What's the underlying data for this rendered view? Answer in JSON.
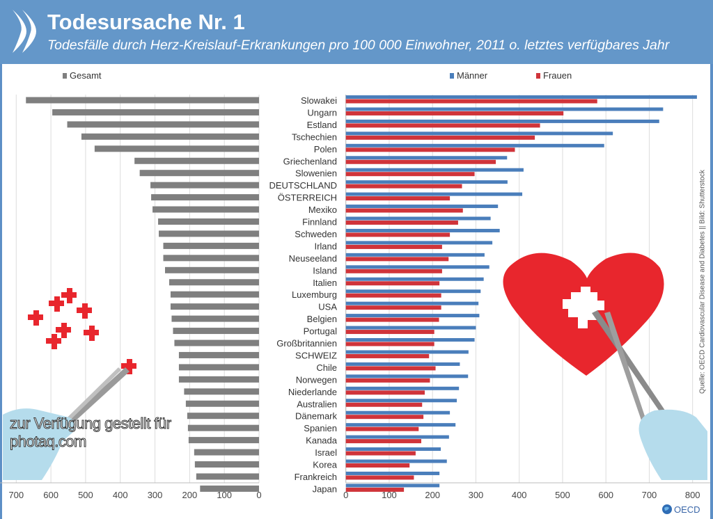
{
  "header": {
    "title": "Todesursache Nr. 1",
    "subtitle": "Todesfälle durch Herz-Kreislauf-Erkrankungen pro 100 000 Einwohner, 2011 o. letztes verfügbares Jahr"
  },
  "source": "Quelle: OECD Cardiovascular Disease and Diabetes || Bild: Shutterstock",
  "watermark": "zur Verfügung gestellt für photaq.com",
  "logo_text": "OECD",
  "colors": {
    "header": "#6497c9",
    "gesamt": "#7f7f7f",
    "maenner": "#4a7ebb",
    "frauen": "#d0343a"
  },
  "chart_data": [
    {
      "type": "bar",
      "orientation": "horizontal-reversed",
      "legend": [
        "Gesamt"
      ],
      "xlim": [
        0,
        700
      ],
      "xticks": [
        "700",
        "600",
        "500",
        "400",
        "300",
        "200",
        "100",
        "0"
      ],
      "categories": [
        "Slowakei",
        "Ungarn",
        "Estland",
        "Tschechien",
        "Polen",
        "Griechenland",
        "Slowenien",
        "DEUTSCHLAND",
        "ÖSTERREICH",
        "Mexiko",
        "Finnland",
        "Schweden",
        "Irland",
        "Neuseeland",
        "Island",
        "Italien",
        "Luxemburg",
        "USA",
        "Belgien",
        "Portugal",
        "Großbritannien",
        "SCHWEIZ",
        "Chile",
        "Norwegen",
        "Niederlande",
        "Australien",
        "Dänemark",
        "Spanien",
        "Kanada",
        "Israel",
        "Korea",
        "Frankreich",
        "Japan"
      ],
      "series": [
        {
          "name": "Gesamt",
          "values": [
            672,
            596,
            553,
            512,
            474,
            359,
            344,
            313,
            311,
            307,
            291,
            289,
            276,
            276,
            271,
            259,
            255,
            255,
            252,
            248,
            244,
            231,
            231,
            231,
            216,
            211,
            207,
            205,
            203,
            187,
            185,
            181,
            170
          ]
        }
      ]
    },
    {
      "type": "bar",
      "orientation": "horizontal",
      "legend": [
        "Männer",
        "Frauen"
      ],
      "xlim": [
        0,
        800
      ],
      "xticks": [
        "0",
        "100",
        "200",
        "300",
        "400",
        "500",
        "600",
        "700",
        "800"
      ],
      "series": [
        {
          "name": "Männer",
          "values": [
            810,
            732,
            723,
            616,
            596,
            372,
            410,
            373,
            407,
            351,
            334,
            355,
            338,
            320,
            331,
            318,
            311,
            306,
            308,
            300,
            297,
            283,
            263,
            282,
            261,
            256,
            240,
            253,
            238,
            219,
            233,
            216,
            216
          ]
        },
        {
          "name": "Frauen",
          "values": [
            580,
            502,
            448,
            436,
            390,
            346,
            297,
            268,
            240,
            270,
            259,
            240,
            222,
            237,
            222,
            216,
            220,
            220,
            215,
            204,
            204,
            192,
            207,
            194,
            182,
            176,
            179,
            168,
            174,
            161,
            147,
            157,
            134
          ]
        }
      ]
    }
  ]
}
